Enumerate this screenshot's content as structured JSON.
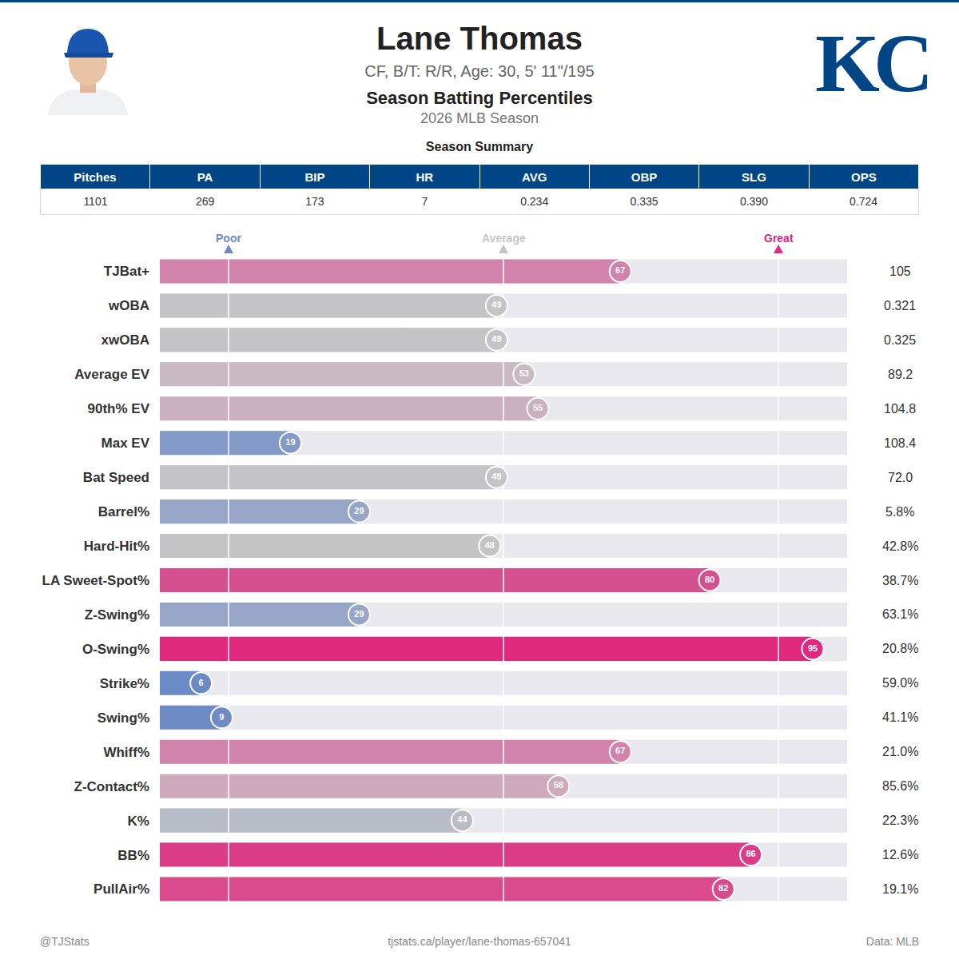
{
  "header": {
    "name": "Lane Thomas",
    "bio": "CF, B/T: R/R, Age: 30, 5' 11\"/195",
    "title": "Season Batting Percentiles",
    "season": "2026 MLB Season",
    "logo": "KC"
  },
  "summary": {
    "title": "Season Summary",
    "columns": [
      "Pitches",
      "PA",
      "BIP",
      "HR",
      "AVG",
      "OBP",
      "SLG",
      "OPS"
    ],
    "values": [
      "1101",
      "269",
      "173",
      "7",
      "0.234",
      "0.335",
      "0.390",
      "0.724"
    ]
  },
  "chart_data": {
    "type": "bar",
    "orientation": "horizontal",
    "categories": [
      "TJBat+",
      "wOBA",
      "xwOBA",
      "Average EV",
      "90th% EV",
      "Max EV",
      "Bat Speed",
      "Barrel%",
      "Hard-Hit%",
      "LA Sweet-Spot%",
      "Z-Swing%",
      "O-Swing%",
      "Strike%",
      "Swing%",
      "Whiff%",
      "Z-Contact%",
      "K%",
      "BB%",
      "PullAir%"
    ],
    "values": [
      67,
      49,
      49,
      53,
      55,
      19,
      49,
      29,
      48,
      80,
      29,
      95,
      6,
      9,
      67,
      58,
      44,
      86,
      82
    ],
    "colors": [
      "#d283ab",
      "#c4c4c8",
      "#c4c4c8",
      "#c8b9c2",
      "#cbb0bf",
      "#8399c8",
      "#c4c4c8",
      "#97a5c9",
      "#c4c4c6",
      "#d5508f",
      "#97a5c9",
      "#e0287f",
      "#6c8ac6",
      "#6f8bc6",
      "#d283ab",
      "#cfa9bc",
      "#b8bcc7",
      "#db3c88",
      "#d94b8c"
    ],
    "stats": [
      "105",
      "0.321",
      "0.325",
      "89.2",
      "104.8",
      "108.4",
      "72.0",
      "5.8%",
      "42.8%",
      "38.7%",
      "63.1%",
      "20.8%",
      "59.0%",
      "41.1%",
      "21.0%",
      "85.6%",
      "22.3%",
      "12.6%",
      "19.1%"
    ],
    "data_labels": true,
    "xlim": [
      0,
      100
    ],
    "tick_labels": "y",
    "reference_lines": [
      {
        "label": "Poor",
        "value": 10
      },
      {
        "label": "Average",
        "value": 50
      },
      {
        "label": "Great",
        "value": 90
      }
    ]
  },
  "footer": {
    "left": "@TJStats",
    "center": "tjstats.ca/player/lane-thomas-657041",
    "right": "Data: MLB"
  }
}
